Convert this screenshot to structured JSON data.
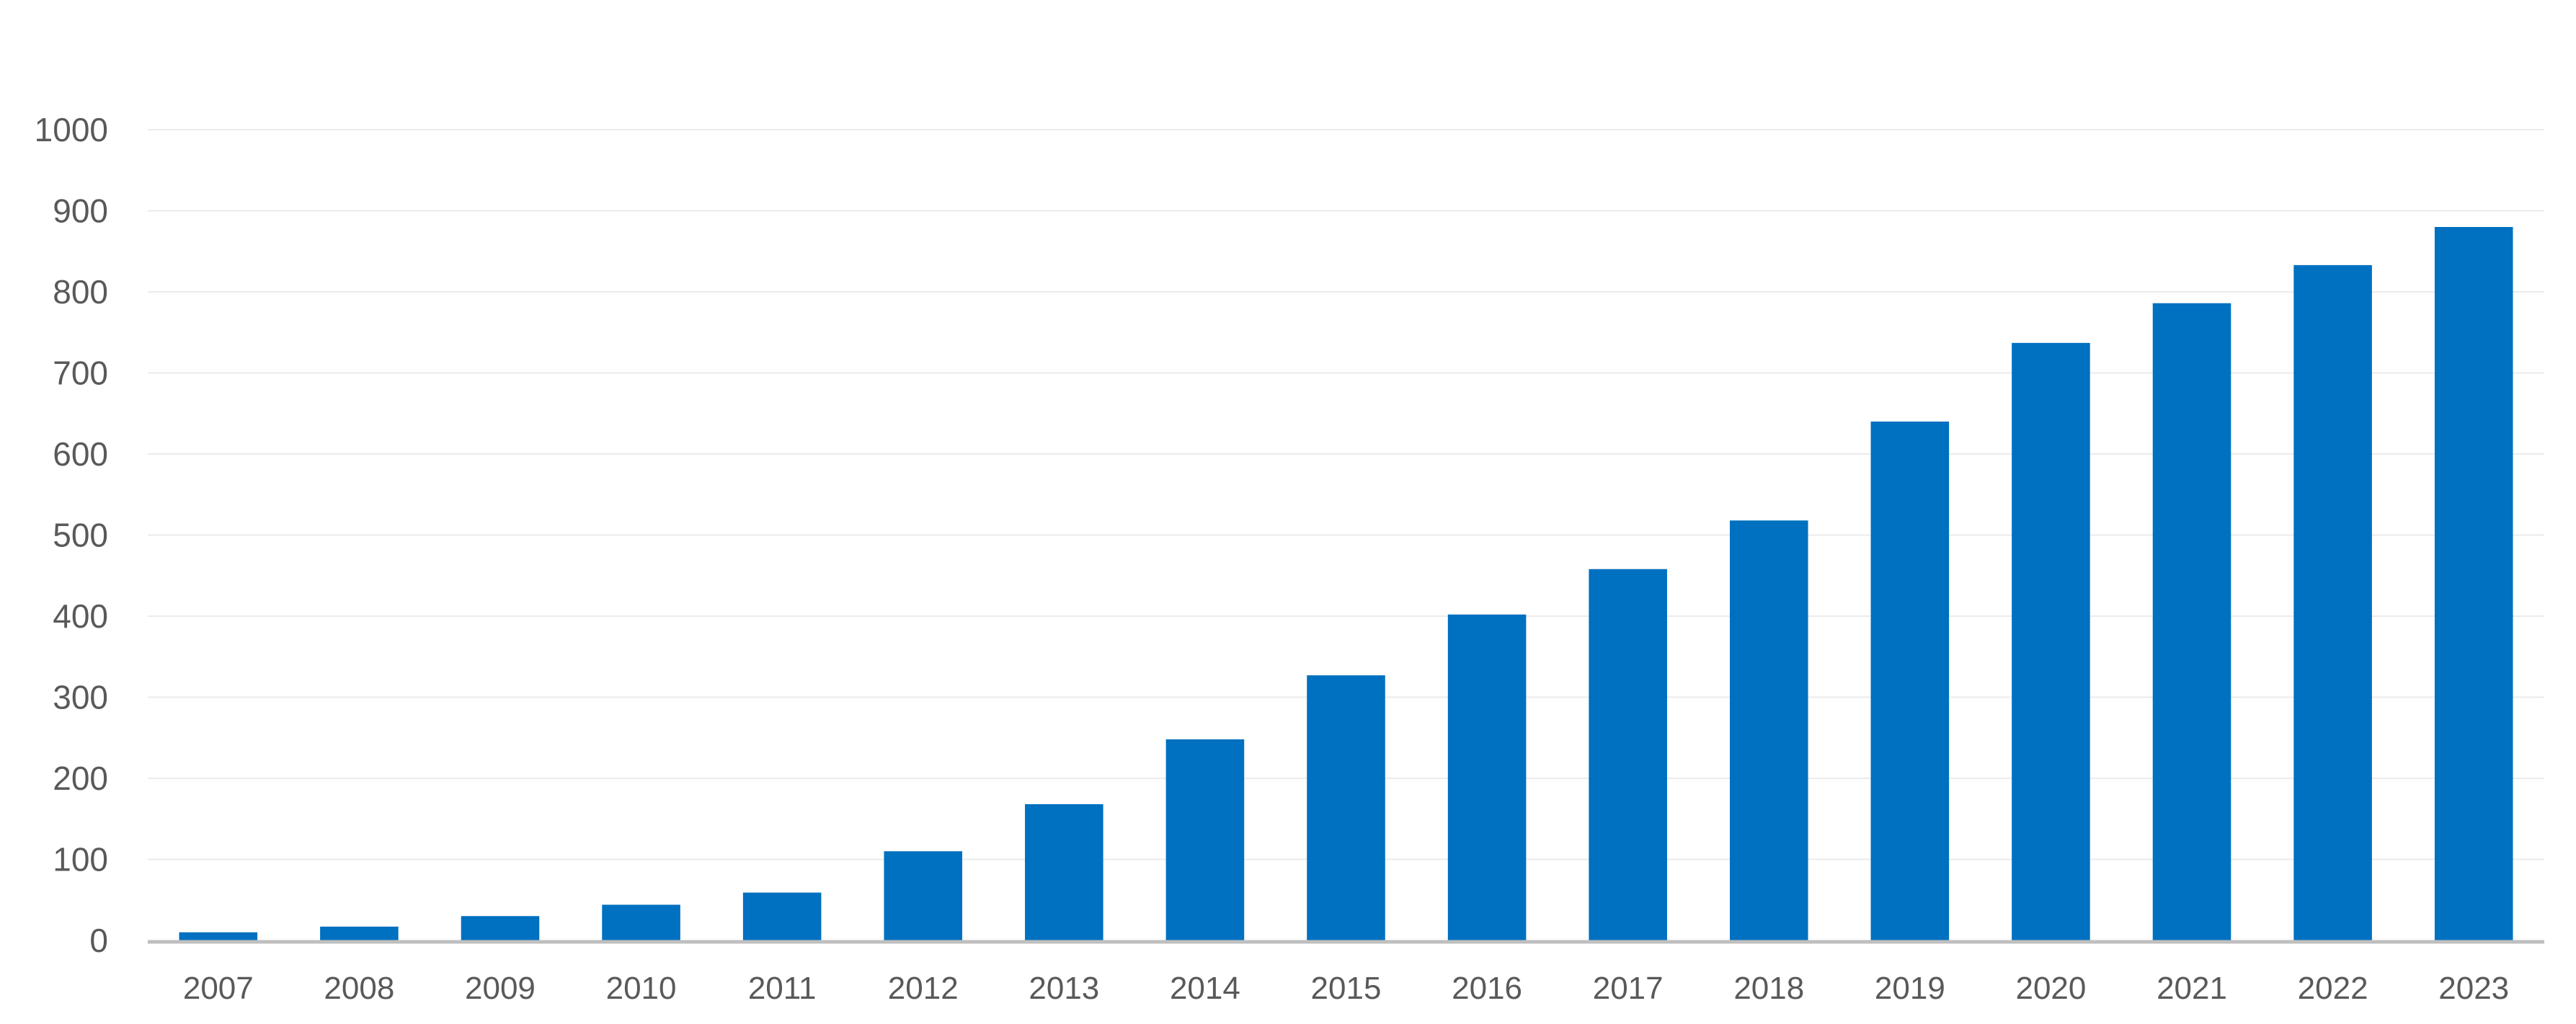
{
  "chart_data": {
    "type": "bar",
    "title": "",
    "xlabel": "",
    "ylabel": "",
    "categories": [
      "2007",
      "2008",
      "2009",
      "2010",
      "2011",
      "2012",
      "2013",
      "2014",
      "2015",
      "2016",
      "2017",
      "2018",
      "2019",
      "2020",
      "2021",
      "2022",
      "2023"
    ],
    "series": [
      {
        "values": [
          10,
          17,
          30,
          44,
          59,
          110,
          168,
          248,
          327,
          402,
          458,
          518,
          640,
          737,
          786,
          833,
          880
        ],
        "color": "#0070C0"
      }
    ],
    "ylim": [
      0,
      1000
    ],
    "y_ticks": [
      "0",
      "100",
      "200",
      "300",
      "400",
      "500",
      "600",
      "700",
      "800",
      "900",
      "1000"
    ],
    "grid": true,
    "legend": "none",
    "colors": {
      "bar": "#0070C0",
      "gridline": "#EBEBEB",
      "axis_line": "#BFBFBF",
      "tick_label": "#595959"
    }
  }
}
